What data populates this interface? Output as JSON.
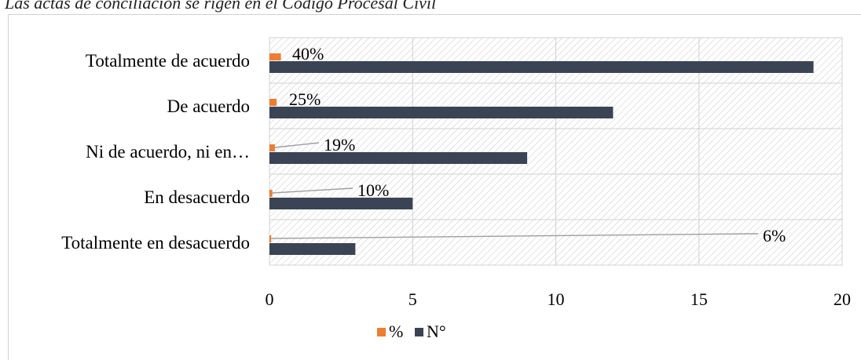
{
  "header": {
    "text": "Las actas de conciliación se rigen en el Código Procesal Civil"
  },
  "chart_data": {
    "type": "bar",
    "orientation": "horizontal",
    "categories": [
      "Totalmente de acuerdo",
      "De acuerdo",
      "Ni de acuerdo, ni en…",
      "En desacuerdo",
      "Totalmente en desacuerdo"
    ],
    "series": [
      {
        "name": "%",
        "values": [
          0.4,
          0.25,
          0.19,
          0.1,
          0.06
        ],
        "labels": [
          "40%",
          "25%",
          "19%",
          "10%",
          "6%"
        ],
        "color": "#ED7D31"
      },
      {
        "name": "N°",
        "values": [
          19,
          12,
          9,
          5,
          3
        ],
        "color": "#3B4455"
      }
    ],
    "xlim": [
      0,
      20
    ],
    "xticks": [
      "0",
      "5",
      "10",
      "15",
      "20"
    ],
    "grid": true,
    "legend": {
      "position": "bottom",
      "entries": [
        "%",
        "N°"
      ]
    },
    "plot_background": "hatched"
  }
}
